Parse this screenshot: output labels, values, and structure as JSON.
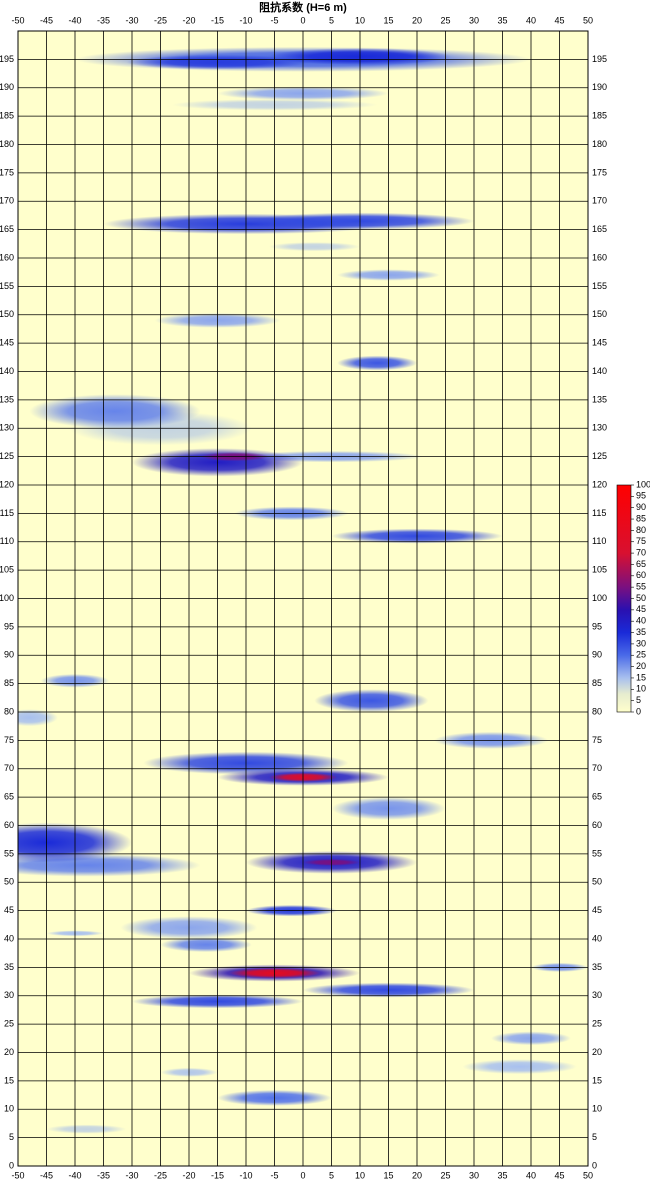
{
  "chart_data": {
    "type": "heatmap",
    "title": "阻抗系数 (H=6 m)",
    "xlim": [
      -50,
      50
    ],
    "xticks": [
      -50,
      -45,
      -40,
      -35,
      -30,
      -25,
      -20,
      -15,
      -10,
      -5,
      0,
      5,
      10,
      15,
      20,
      25,
      30,
      35,
      40,
      45,
      50
    ],
    "ylim": [
      0,
      200
    ],
    "yticks": [
      0,
      5,
      10,
      15,
      20,
      25,
      30,
      35,
      40,
      45,
      50,
      55,
      60,
      65,
      70,
      75,
      80,
      85,
      90,
      95,
      100,
      105,
      110,
      115,
      120,
      125,
      130,
      135,
      140,
      145,
      150,
      155,
      160,
      165,
      170,
      175,
      180,
      185,
      190,
      195
    ],
    "grid": true,
    "zlim": [
      0,
      100
    ],
    "zticks": [
      0,
      5,
      10,
      15,
      20,
      25,
      30,
      35,
      40,
      45,
      50,
      55,
      60,
      65,
      70,
      75,
      80,
      85,
      90,
      95,
      100
    ],
    "colorscale": [
      [
        0,
        "#ffffcc"
      ],
      [
        8,
        "#e6eccf"
      ],
      [
        15,
        "#a8c0ee"
      ],
      [
        25,
        "#4a6ae8"
      ],
      [
        35,
        "#1a2ad8"
      ],
      [
        45,
        "#2a10b0"
      ],
      [
        55,
        "#7a1080"
      ],
      [
        70,
        "#d81030"
      ],
      [
        100,
        "#ff0000"
      ]
    ],
    "blobs": [
      {
        "x": 0,
        "y": 195,
        "rx": 40,
        "ry": 2.2,
        "value": 26
      },
      {
        "x": 10,
        "y": 195.5,
        "rx": 16,
        "ry": 1.5,
        "value": 35
      },
      {
        "x": -15,
        "y": 194.5,
        "rx": 16,
        "ry": 1.3,
        "value": 32
      },
      {
        "x": 0,
        "y": 189,
        "rx": 15,
        "ry": 1.2,
        "value": 18
      },
      {
        "x": -5,
        "y": 187,
        "rx": 18,
        "ry": 1,
        "value": 12
      },
      {
        "x": -10,
        "y": 166,
        "rx": 25,
        "ry": 1.8,
        "value": 32
      },
      {
        "x": 10,
        "y": 166.5,
        "rx": 20,
        "ry": 1.5,
        "value": 30
      },
      {
        "x": 15,
        "y": 157,
        "rx": 9,
        "ry": 1,
        "value": 18
      },
      {
        "x": 2,
        "y": 162,
        "rx": 8,
        "ry": 0.8,
        "value": 12
      },
      {
        "x": -15,
        "y": 149,
        "rx": 11,
        "ry": 1.3,
        "value": 18
      },
      {
        "x": 13,
        "y": 141.5,
        "rx": 7,
        "ry": 1.3,
        "value": 28
      },
      {
        "x": -25,
        "y": 130,
        "rx": 16,
        "ry": 3,
        "value": 12
      },
      {
        "x": -33,
        "y": 133,
        "rx": 15,
        "ry": 3,
        "value": 22
      },
      {
        "x": 5,
        "y": 125,
        "rx": 16,
        "ry": 1,
        "value": 18
      },
      {
        "x": -15,
        "y": 124,
        "rx": 15,
        "ry": 2.5,
        "value": 40
      },
      {
        "x": -12,
        "y": 125,
        "rx": 6,
        "ry": 0.8,
        "value": 55
      },
      {
        "x": -2,
        "y": 115,
        "rx": 10,
        "ry": 1.2,
        "value": 22
      },
      {
        "x": 20,
        "y": 111,
        "rx": 15,
        "ry": 1.3,
        "value": 30
      },
      {
        "x": -40,
        "y": 85.5,
        "rx": 6,
        "ry": 1.2,
        "value": 20
      },
      {
        "x": 12,
        "y": 82,
        "rx": 10,
        "ry": 2,
        "value": 28
      },
      {
        "x": -48,
        "y": 79,
        "rx": 5,
        "ry": 1.5,
        "value": 15
      },
      {
        "x": 33,
        "y": 75,
        "rx": 10,
        "ry": 1.5,
        "value": 20
      },
      {
        "x": 15,
        "y": 63,
        "rx": 10,
        "ry": 2,
        "value": 20
      },
      {
        "x": -10,
        "y": 71,
        "rx": 18,
        "ry": 2,
        "value": 30
      },
      {
        "x": 0,
        "y": 68.5,
        "rx": 15,
        "ry": 1.5,
        "value": 40
      },
      {
        "x": 0,
        "y": 68.5,
        "rx": 6,
        "ry": 0.8,
        "value": 75
      },
      {
        "x": -38,
        "y": 53,
        "rx": 20,
        "ry": 2,
        "value": 22
      },
      {
        "x": -45,
        "y": 57,
        "rx": 15,
        "ry": 3.5,
        "value": 35
      },
      {
        "x": 5,
        "y": 53.5,
        "rx": 15,
        "ry": 2,
        "value": 40
      },
      {
        "x": 5,
        "y": 53.5,
        "rx": 5,
        "ry": 0.6,
        "value": 55
      },
      {
        "x": -20,
        "y": 42,
        "rx": 12,
        "ry": 2,
        "value": 18
      },
      {
        "x": -17,
        "y": 39,
        "rx": 8,
        "ry": 1.3,
        "value": 22
      },
      {
        "x": -2,
        "y": 45,
        "rx": 8,
        "ry": 1,
        "value": 32
      },
      {
        "x": -40,
        "y": 41,
        "rx": 5,
        "ry": 0.5,
        "value": 15
      },
      {
        "x": 45,
        "y": 35,
        "rx": 5,
        "ry": 0.8,
        "value": 20
      },
      {
        "x": -15,
        "y": 29,
        "rx": 15,
        "ry": 1.2,
        "value": 30
      },
      {
        "x": 15,
        "y": 31,
        "rx": 15,
        "ry": 1.3,
        "value": 30
      },
      {
        "x": -5,
        "y": 34,
        "rx": 15,
        "ry": 1.5,
        "value": 45
      },
      {
        "x": -5,
        "y": 34,
        "rx": 8,
        "ry": 0.9,
        "value": 80
      },
      {
        "x": 40,
        "y": 22.5,
        "rx": 7,
        "ry": 1.2,
        "value": 18
      },
      {
        "x": 38,
        "y": 17.5,
        "rx": 10,
        "ry": 1.3,
        "value": 15
      },
      {
        "x": -20,
        "y": 16.5,
        "rx": 5,
        "ry": 0.8,
        "value": 14
      },
      {
        "x": -5,
        "y": 12,
        "rx": 10,
        "ry": 1.4,
        "value": 24
      },
      {
        "x": -38,
        "y": 6.5,
        "rx": 7,
        "ry": 0.8,
        "value": 12
      }
    ]
  }
}
